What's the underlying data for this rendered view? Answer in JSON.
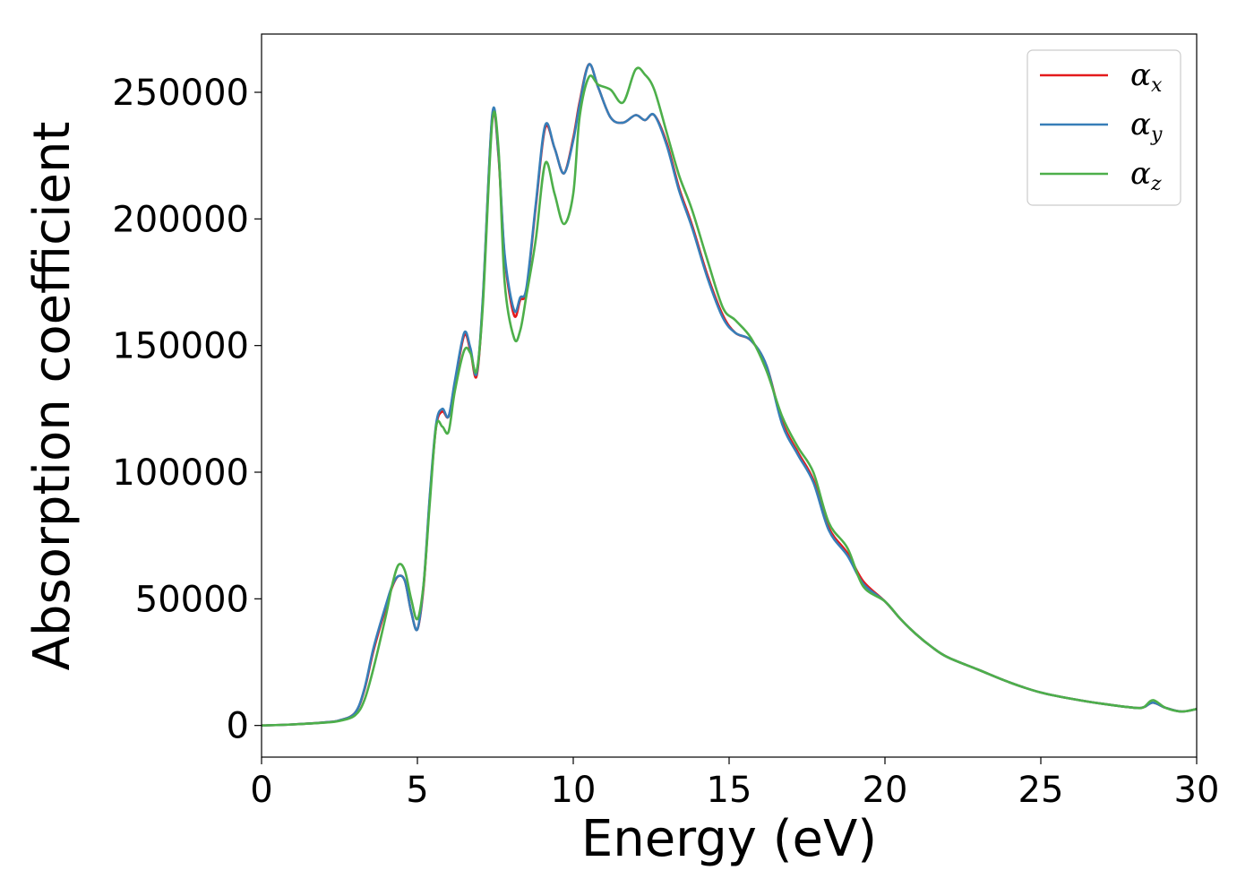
{
  "chart_data": {
    "type": "line",
    "xlabel": "Energy (eV)",
    "ylabel": "Absorption coefficient",
    "xlim": [
      0,
      30
    ],
    "ylim": [
      -12500,
      273000
    ],
    "xticks": [
      0,
      5,
      10,
      15,
      20,
      25,
      30
    ],
    "xtick_labels": [
      "0",
      "5",
      "10",
      "15",
      "20",
      "25",
      "30"
    ],
    "yticks": [
      0,
      50000,
      100000,
      150000,
      200000,
      250000
    ],
    "ytick_labels": [
      "0",
      "50000",
      "100000",
      "150000",
      "200000",
      "250000"
    ],
    "grid": false,
    "legend_position": "top-right",
    "series": [
      {
        "name": "αx",
        "symbol": "α",
        "subscript": "x",
        "color": "#e41a1c",
        "x": [
          0,
          1,
          2,
          2.5,
          3,
          3.3,
          3.6,
          4,
          4.2,
          4.4,
          4.6,
          4.8,
          5,
          5.2,
          5.4,
          5.6,
          5.8,
          6,
          6.2,
          6.5,
          6.7,
          6.9,
          7.1,
          7.4,
          7.6,
          7.8,
          8.1,
          8.3,
          8.5,
          8.8,
          9.1,
          9.4,
          9.7,
          10,
          10.2,
          10.5,
          10.8,
          11.2,
          11.6,
          12,
          12.3,
          12.6,
          13,
          13.4,
          13.8,
          14.3,
          14.8,
          15.2,
          15.7,
          16.2,
          16.7,
          17.2,
          17.7,
          18.2,
          18.8,
          19.3,
          20,
          20.5,
          21,
          21.5,
          22,
          23,
          24,
          25,
          26,
          27,
          28,
          28.3,
          28.6,
          29,
          29.5,
          30
        ],
        "y": [
          0,
          400,
          1200,
          2000,
          5000,
          14000,
          30000,
          47000,
          55000,
          59000,
          57000,
          45000,
          38000,
          55000,
          90000,
          118000,
          124000,
          122000,
          135000,
          154000,
          148000,
          138000,
          168000,
          240000,
          225000,
          185000,
          162000,
          168000,
          172000,
          205000,
          236000,
          228000,
          218000,
          232000,
          246000,
          261000,
          252000,
          240000,
          238000,
          241000,
          239000,
          241000,
          230000,
          212000,
          198000,
          178000,
          162000,
          155000,
          152000,
          142000,
          120000,
          108000,
          97000,
          78000,
          68000,
          57000,
          49000,
          42000,
          36000,
          31000,
          27000,
          22000,
          17000,
          13000,
          10500,
          8500,
          7000,
          7200,
          9000,
          7000,
          5500,
          6500
        ]
      },
      {
        "name": "αy",
        "symbol": "α",
        "subscript": "y",
        "color": "#377eb8",
        "x": [
          0,
          1,
          2,
          2.5,
          3,
          3.3,
          3.6,
          4,
          4.2,
          4.4,
          4.6,
          4.8,
          5,
          5.2,
          5.4,
          5.6,
          5.8,
          6,
          6.2,
          6.5,
          6.7,
          6.9,
          7.1,
          7.4,
          7.6,
          7.8,
          8.1,
          8.3,
          8.5,
          8.8,
          9.1,
          9.4,
          9.7,
          10,
          10.2,
          10.5,
          10.8,
          11.2,
          11.6,
          12,
          12.3,
          12.6,
          13,
          13.4,
          13.8,
          14.3,
          14.8,
          15.2,
          15.7,
          16.2,
          16.7,
          17.2,
          17.7,
          18.2,
          18.8,
          19.3,
          20,
          20.5,
          21,
          21.5,
          22,
          23,
          24,
          25,
          26,
          27,
          28,
          28.3,
          28.6,
          29,
          29.5,
          30
        ],
        "y": [
          0,
          400,
          1200,
          2000,
          5000,
          14500,
          31000,
          48000,
          55500,
          59000,
          57000,
          45000,
          38000,
          56000,
          91000,
          119000,
          125000,
          122000,
          136000,
          155000,
          149000,
          139000,
          169000,
          241000,
          226000,
          186000,
          164000,
          169000,
          173000,
          206000,
          237000,
          228000,
          218000,
          231000,
          245000,
          261000,
          252000,
          240000,
          238000,
          241000,
          239000,
          241000,
          229000,
          211000,
          197000,
          177000,
          161000,
          155000,
          152000,
          142000,
          119000,
          107000,
          96000,
          77000,
          67000,
          56000,
          49000,
          42000,
          36000,
          31000,
          27000,
          22000,
          17000,
          13000,
          10500,
          8500,
          7000,
          7200,
          9000,
          7000,
          5500,
          6500
        ]
      },
      {
        "name": "αz",
        "symbol": "α",
        "subscript": "z",
        "color": "#4daf4a",
        "x": [
          0,
          1,
          2,
          2.5,
          3,
          3.3,
          3.6,
          4,
          4.2,
          4.4,
          4.6,
          4.8,
          5,
          5.2,
          5.4,
          5.6,
          5.8,
          6,
          6.2,
          6.5,
          6.7,
          6.9,
          7.1,
          7.4,
          7.6,
          7.8,
          8.1,
          8.3,
          8.5,
          8.8,
          9.1,
          9.4,
          9.7,
          10,
          10.2,
          10.5,
          10.8,
          11.2,
          11.6,
          12,
          12.3,
          12.6,
          13,
          13.4,
          13.8,
          14.3,
          14.8,
          15.2,
          15.7,
          16.2,
          16.7,
          17.2,
          17.7,
          18.2,
          18.8,
          19.3,
          20,
          20.5,
          21,
          21.5,
          22,
          23,
          24,
          25,
          26,
          27,
          28,
          28.3,
          28.6,
          29,
          29.5,
          30
        ],
        "y": [
          0,
          400,
          1100,
          1800,
          4000,
          10000,
          23000,
          44000,
          56000,
          63500,
          61000,
          50000,
          42000,
          56000,
          88000,
          118000,
          118000,
          116000,
          132000,
          148000,
          147000,
          140000,
          166000,
          238000,
          228000,
          175000,
          153000,
          156000,
          170000,
          192000,
          222000,
          210000,
          198000,
          210000,
          240000,
          256000,
          253000,
          251000,
          246000,
          259000,
          257000,
          251000,
          234000,
          217000,
          204000,
          184000,
          165000,
          160000,
          153000,
          140000,
          122000,
          110000,
          100000,
          80000,
          70000,
          55000,
          49000,
          42000,
          36000,
          31000,
          27000,
          22000,
          17000,
          13000,
          10500,
          8500,
          7000,
          7200,
          10000,
          7000,
          5500,
          6500
        ]
      }
    ]
  }
}
